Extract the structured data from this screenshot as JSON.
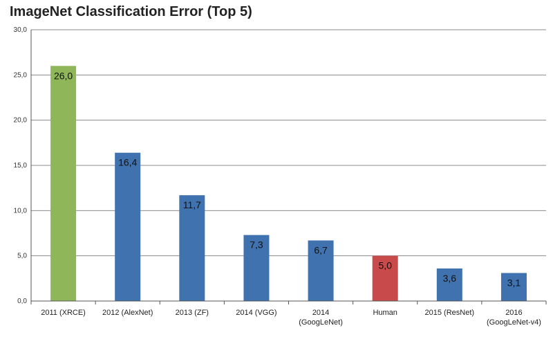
{
  "chart_data": {
    "type": "bar",
    "title": "ImageNet Classification Error (Top 5)",
    "xlabel": "",
    "ylabel": "",
    "ylim": [
      0,
      30
    ],
    "yticks": [
      "0,0",
      "5,0",
      "10,0",
      "15,0",
      "20,0",
      "25,0",
      "30,0"
    ],
    "grid": true,
    "legend": "none",
    "categories": [
      [
        "2011 (XRCE)"
      ],
      [
        "2012 (AlexNet)"
      ],
      [
        "2013 (ZF)"
      ],
      [
        "2014 (VGG)"
      ],
      [
        "2014",
        "(GoogLeNet)"
      ],
      [
        "Human"
      ],
      [
        "2015 (ResNet)"
      ],
      [
        "2016",
        "(GoogLeNet-v4)"
      ]
    ],
    "values": [
      26.0,
      16.4,
      11.7,
      7.3,
      6.7,
      5.0,
      3.6,
      3.1
    ],
    "value_labels": [
      "26,0",
      "16,4",
      "11,7",
      "7,3",
      "6,7",
      "5,0",
      "3,6",
      "3,1"
    ],
    "colors": [
      "#8FB75A",
      "#3F72AF",
      "#3F72AF",
      "#3F72AF",
      "#3F72AF",
      "#C94A4A",
      "#3F72AF",
      "#3F72AF"
    ],
    "grid_color": "#8a8a8a",
    "axis_color": "#555555"
  }
}
